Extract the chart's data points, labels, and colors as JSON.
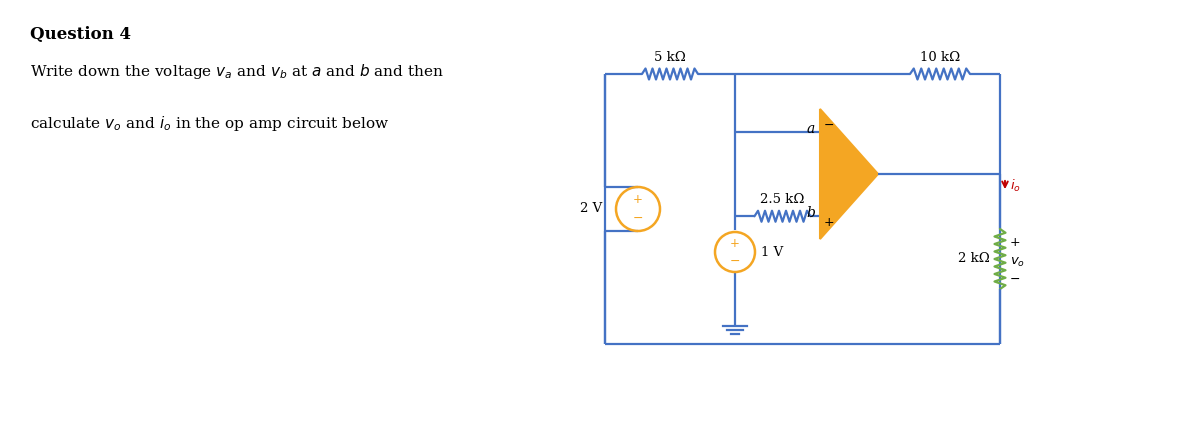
{
  "title": "Question 4",
  "line1": "Write down the voltage $v_a$ and $v_b$ at $a$ and $b$ and then",
  "line2": "calculate $v_o$ and $i_o$ in the op amp circuit below",
  "bg_color": "#ffffff",
  "wire_color": "#4472c4",
  "opamp_fill": "#f4a623",
  "source_color": "#f4a623",
  "io_color": "#c00000",
  "res2k_color": "#70ad47",
  "text_color": "#000000",
  "label_5k": "5 kΩ",
  "label_10k": "10 kΩ",
  "label_25k": "2.5 kΩ",
  "label_2k": "2 kΩ",
  "label_2V": "2 V",
  "label_1V": "1 V",
  "label_a": "a",
  "label_b": "b",
  "font_title": 12,
  "font_text": 11
}
